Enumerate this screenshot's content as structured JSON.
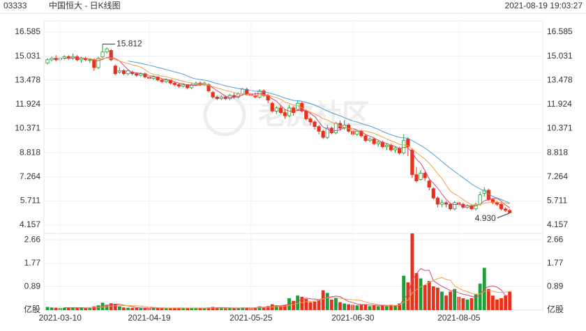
{
  "header": {
    "code": "03333",
    "title": "中国恒大 - 日K线图",
    "time": "2021-08-19 19:03:27"
  },
  "watermark": "老虎社区",
  "chart_data": [
    {
      "type": "candlestick",
      "up_color": "#1e9e3a",
      "down_color": "#e8311a",
      "ma_colors": [
        "#d6457a",
        "#f0a040",
        "#4a9fd8"
      ],
      "grid": true,
      "ylim": [
        4.157,
        16.585
      ],
      "yticks": [
        4.157,
        5.711,
        7.264,
        8.818,
        10.371,
        11.924,
        13.478,
        15.031,
        16.585
      ],
      "annotations": [
        {
          "value": 15.812,
          "label": "15.812"
        },
        {
          "value": 4.93,
          "label": "4.930"
        }
      ],
      "open": [
        14.6,
        14.8,
        14.9,
        14.8,
        14.9,
        15.0,
        14.9,
        15.0,
        14.8,
        14.9,
        14.8,
        14.8,
        14.3,
        15.0,
        15.3,
        15.4,
        14.4,
        14.0,
        14.1,
        13.9,
        14.0,
        13.9,
        13.8,
        13.9,
        13.7,
        13.6,
        13.7,
        13.5,
        13.4,
        13.5,
        13.3,
        13.2,
        13.1,
        13.2,
        13.0,
        13.2,
        13.3,
        13.2,
        13.2,
        12.7,
        12.4,
        12.3,
        12.4,
        12.3,
        12.5,
        12.4,
        12.6,
        12.9,
        12.6,
        12.5,
        12.4,
        12.8,
        12.5,
        12.0,
        11.5,
        11.7,
        11.4,
        11.2,
        11.7,
        11.6,
        12.0,
        11.5,
        11.0,
        10.8,
        10.5,
        10.2,
        9.8,
        10.4,
        10.1,
        10.7,
        10.4,
        10.6,
        10.2,
        10.0,
        10.2,
        9.9,
        9.6,
        9.7,
        9.4,
        9.5,
        9.2,
        9.3,
        9.0,
        9.1,
        8.8,
        9.7,
        9.0,
        7.4,
        7.1,
        7.5,
        7.0,
        6.5,
        5.9,
        5.5,
        5.6,
        5.5,
        5.2,
        5.6,
        5.5,
        5.3,
        5.4,
        5.2,
        5.5,
        6.2,
        6.4,
        5.8,
        5.6,
        5.5,
        5.2,
        5.1
      ],
      "close": [
        14.8,
        14.9,
        14.8,
        14.9,
        15.0,
        14.9,
        15.0,
        14.8,
        14.9,
        14.8,
        14.8,
        14.3,
        14.9,
        15.3,
        15.5,
        14.8,
        13.9,
        14.1,
        13.9,
        14.1,
        13.9,
        13.8,
        13.9,
        13.7,
        13.6,
        13.7,
        13.5,
        13.4,
        13.5,
        13.3,
        13.2,
        13.1,
        13.2,
        13.0,
        13.2,
        13.3,
        13.2,
        13.3,
        12.8,
        12.4,
        12.3,
        12.4,
        12.3,
        12.5,
        12.4,
        12.6,
        12.9,
        12.6,
        12.5,
        12.4,
        12.8,
        12.5,
        12.2,
        11.5,
        11.7,
        11.4,
        11.2,
        11.7,
        11.4,
        12.0,
        11.5,
        11.0,
        10.8,
        10.5,
        10.2,
        9.8,
        10.4,
        10.1,
        10.7,
        10.4,
        10.6,
        10.2,
        10.0,
        10.2,
        9.9,
        9.6,
        9.7,
        9.4,
        9.5,
        9.2,
        9.3,
        9.0,
        9.1,
        8.8,
        9.6,
        9.2,
        7.4,
        7.0,
        7.5,
        7.2,
        6.6,
        5.9,
        5.5,
        5.6,
        5.5,
        5.2,
        5.6,
        5.5,
        5.3,
        5.4,
        5.2,
        5.5,
        6.1,
        6.4,
        5.8,
        5.6,
        5.5,
        5.2,
        5.1,
        4.95
      ],
      "high": [
        14.9,
        15.0,
        15.1,
        15.0,
        15.1,
        15.1,
        15.2,
        15.1,
        15.0,
        15.0,
        14.9,
        14.9,
        15.0,
        15.812,
        15.6,
        15.5,
        14.5,
        14.3,
        14.2,
        14.2,
        14.1,
        14.0,
        14.0,
        14.0,
        13.8,
        13.8,
        13.7,
        13.6,
        13.6,
        13.5,
        13.4,
        13.3,
        13.3,
        13.2,
        13.3,
        13.4,
        13.4,
        13.4,
        13.3,
        12.8,
        12.5,
        12.5,
        12.5,
        12.6,
        12.7,
        12.7,
        13.0,
        13.0,
        12.7,
        12.7,
        12.9,
        12.9,
        12.6,
        12.1,
        11.8,
        11.9,
        11.6,
        11.9,
        11.8,
        12.2,
        12.1,
        11.6,
        11.1,
        10.9,
        10.6,
        10.3,
        10.6,
        10.5,
        10.8,
        10.9,
        10.9,
        10.7,
        10.3,
        10.3,
        10.3,
        10.0,
        9.8,
        9.8,
        9.6,
        9.6,
        9.4,
        9.4,
        9.2,
        9.2,
        10.0,
        9.8,
        9.1,
        7.9,
        7.7,
        7.6,
        7.1,
        6.6,
        6.0,
        5.8,
        5.7,
        5.6,
        5.7,
        5.7,
        5.6,
        5.5,
        5.5,
        5.6,
        6.3,
        6.6,
        6.5,
        5.9,
        5.7,
        5.6,
        5.3,
        5.2
      ],
      "low": [
        14.5,
        14.7,
        14.7,
        14.6,
        14.8,
        14.8,
        14.8,
        14.7,
        14.6,
        14.7,
        14.6,
        14.1,
        14.2,
        14.9,
        15.2,
        14.7,
        13.8,
        13.9,
        13.8,
        13.8,
        13.8,
        13.7,
        13.7,
        13.6,
        13.5,
        13.5,
        13.4,
        13.3,
        13.3,
        13.2,
        13.1,
        13.0,
        13.0,
        12.9,
        12.9,
        13.1,
        13.1,
        13.1,
        12.7,
        12.3,
        12.2,
        12.2,
        12.2,
        12.2,
        12.3,
        12.3,
        12.5,
        12.5,
        12.4,
        12.3,
        12.3,
        12.4,
        12.0,
        11.4,
        11.3,
        11.3,
        11.0,
        11.1,
        11.2,
        11.5,
        11.4,
        10.9,
        10.6,
        10.3,
        10.0,
        9.7,
        9.7,
        10.0,
        10.0,
        10.3,
        10.3,
        10.1,
        9.9,
        9.9,
        9.8,
        9.5,
        9.5,
        9.3,
        9.2,
        9.1,
        9.0,
        8.9,
        8.8,
        8.7,
        8.7,
        8.6,
        7.2,
        6.9,
        7.0,
        7.0,
        6.4,
        5.8,
        5.3,
        5.3,
        5.3,
        5.1,
        5.1,
        5.3,
        5.2,
        5.2,
        5.1,
        5.1,
        5.4,
        6.0,
        5.7,
        5.5,
        5.4,
        5.1,
        5.0,
        4.93
      ]
    },
    {
      "type": "bar",
      "ylim": [
        0,
        2.9
      ],
      "yticks": [
        {
          "value": 0,
          "label": "亿股"
        },
        0.89,
        1.77,
        2.66
      ],
      "categories": [
        null,
        null,
        null,
        "2021-03-10",
        null,
        null,
        null,
        null,
        null,
        null,
        null,
        null,
        null,
        null,
        null,
        null,
        null,
        null,
        null,
        null,
        null,
        null,
        null,
        null,
        "2021-04-19",
        null,
        null,
        null,
        null,
        null,
        null,
        null,
        null,
        null,
        null,
        null,
        null,
        null,
        null,
        null,
        null,
        null,
        null,
        null,
        null,
        null,
        null,
        null,
        "2021-05-25",
        null,
        null,
        null,
        null,
        null,
        null,
        null,
        null,
        null,
        null,
        null,
        null,
        null,
        null,
        null,
        null,
        null,
        null,
        null,
        null,
        null,
        null,
        null,
        "2021-06-30",
        null,
        null,
        null,
        null,
        null,
        null,
        null,
        null,
        null,
        null,
        null,
        null,
        null,
        null,
        null,
        null,
        null,
        null,
        null,
        null,
        null,
        null,
        null,
        null,
        "2021-08-05",
        null,
        null,
        null,
        null,
        null,
        null,
        null,
        null,
        null,
        null,
        null,
        null
      ],
      "values": [
        0.12,
        0.1,
        0.09,
        0.08,
        0.09,
        0.08,
        0.1,
        0.09,
        0.08,
        0.07,
        0.08,
        0.14,
        0.18,
        0.28,
        0.2,
        0.26,
        0.22,
        0.14,
        0.1,
        0.09,
        0.08,
        0.08,
        0.07,
        0.08,
        0.09,
        0.07,
        0.08,
        0.09,
        0.07,
        0.08,
        0.08,
        0.09,
        0.07,
        0.08,
        0.07,
        0.08,
        0.07,
        0.08,
        0.1,
        0.12,
        0.09,
        0.08,
        0.07,
        0.08,
        0.07,
        0.08,
        0.1,
        0.09,
        0.1,
        0.09,
        0.14,
        0.12,
        0.15,
        0.22,
        0.18,
        0.16,
        0.2,
        0.45,
        0.35,
        0.55,
        0.5,
        0.42,
        0.3,
        0.32,
        0.4,
        0.75,
        0.65,
        0.4,
        0.45,
        0.3,
        0.25,
        0.22,
        0.2,
        0.18,
        0.2,
        0.22,
        0.15,
        0.18,
        0.15,
        0.17,
        0.14,
        0.2,
        0.18,
        0.25,
        1.3,
        1.05,
        2.9,
        1.4,
        1.2,
        0.95,
        1.1,
        0.9,
        0.85,
        0.7,
        0.55,
        0.7,
        0.8,
        0.5,
        0.45,
        0.4,
        0.45,
        0.6,
        1.0,
        1.6,
        0.8,
        0.55,
        0.4,
        0.45,
        0.55,
        0.7
      ]
    }
  ]
}
